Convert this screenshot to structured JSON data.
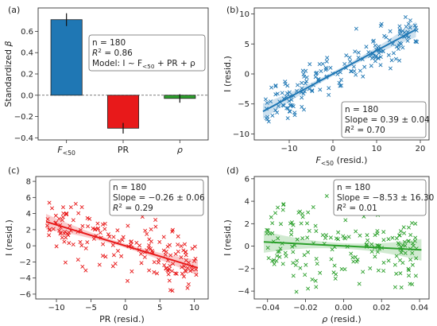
{
  "figure": {
    "panel_labels": [
      "(a)",
      "(b)",
      "(c)",
      "(d)"
    ]
  },
  "chart_data": [
    {
      "panel": "(a)",
      "type": "bar",
      "categories": [
        "F<50",
        "PR",
        "ρ"
      ],
      "values": [
        0.71,
        -0.31,
        -0.03
      ],
      "errors": [
        0.06,
        0.05,
        0.04
      ],
      "colors": [
        "#1f77b4",
        "#e8191a",
        "#2ca02c"
      ],
      "ylabel": "Standardized β",
      "ylim": [
        -0.42,
        0.82
      ],
      "yticks": [
        -0.4,
        -0.2,
        0.0,
        0.2,
        0.4,
        0.6
      ],
      "reference_line": 0,
      "stats_box": [
        "n = 180",
        "R² = 0.86",
        "Model: I ~ F<50 + PR + ρ"
      ]
    },
    {
      "panel": "(b)",
      "type": "scatter",
      "color": "#1f77b4",
      "marker": "x",
      "n": 180,
      "xlabel": "F<50 (resid.)",
      "ylabel": "I (resid.)",
      "xlim": [
        -18,
        22
      ],
      "ylim": [
        -11,
        11
      ],
      "xticks": [
        -10,
        0,
        10,
        20
      ],
      "yticks": [
        -10,
        -5,
        0,
        5,
        10
      ],
      "fit": {
        "slope": 0.39,
        "intercept": 0.0,
        "x_range": [
          -16,
          19
        ],
        "ci_half_width": 0.6
      },
      "stats_box": [
        "n = 180",
        "Slope = 0.39 ± 0.04",
        "R² = 0.70"
      ],
      "noise_sd": 2.0
    },
    {
      "panel": "(c)",
      "type": "scatter",
      "color": "#e8191a",
      "marker": "x",
      "n": 180,
      "xlabel": "PR (resid.)",
      "ylabel": "I (resid.)",
      "xlim": [
        -13,
        12
      ],
      "ylim": [
        -6.6,
        8.6
      ],
      "xticks": [
        -10,
        -5,
        0,
        5,
        10
      ],
      "yticks": [
        -6,
        -4,
        -2,
        0,
        2,
        4,
        6,
        8
      ],
      "fit": {
        "slope": -0.26,
        "intercept": 0.0,
        "x_range": [
          -11.5,
          10.5
        ],
        "ci_half_width": 0.45
      },
      "stats_box": [
        "n = 180",
        "Slope = −0.26 ± 0.06",
        "R² = 0.29"
      ],
      "noise_sd": 1.7
    },
    {
      "panel": "(d)",
      "type": "scatter",
      "color": "#2ca02c",
      "marker": "x",
      "n": 180,
      "xlabel": "ρ (resid.)",
      "ylabel": "I (resid.)",
      "xlim": [
        -0.047,
        0.045
      ],
      "ylim": [
        -4.7,
        6.2
      ],
      "xticks": [
        -0.04,
        -0.02,
        0.0,
        0.02,
        0.04
      ],
      "yticks": [
        -4,
        -2,
        0,
        2,
        4,
        6
      ],
      "fit": {
        "slope": -8.53,
        "intercept": 0.02,
        "x_range": [
          -0.042,
          0.041
        ],
        "ci_half_width": 0.45
      },
      "stats_box": [
        "n = 180",
        "Slope = −8.53 ± 16.30",
        "R² = 0.01"
      ],
      "noise_sd": 1.8
    }
  ]
}
